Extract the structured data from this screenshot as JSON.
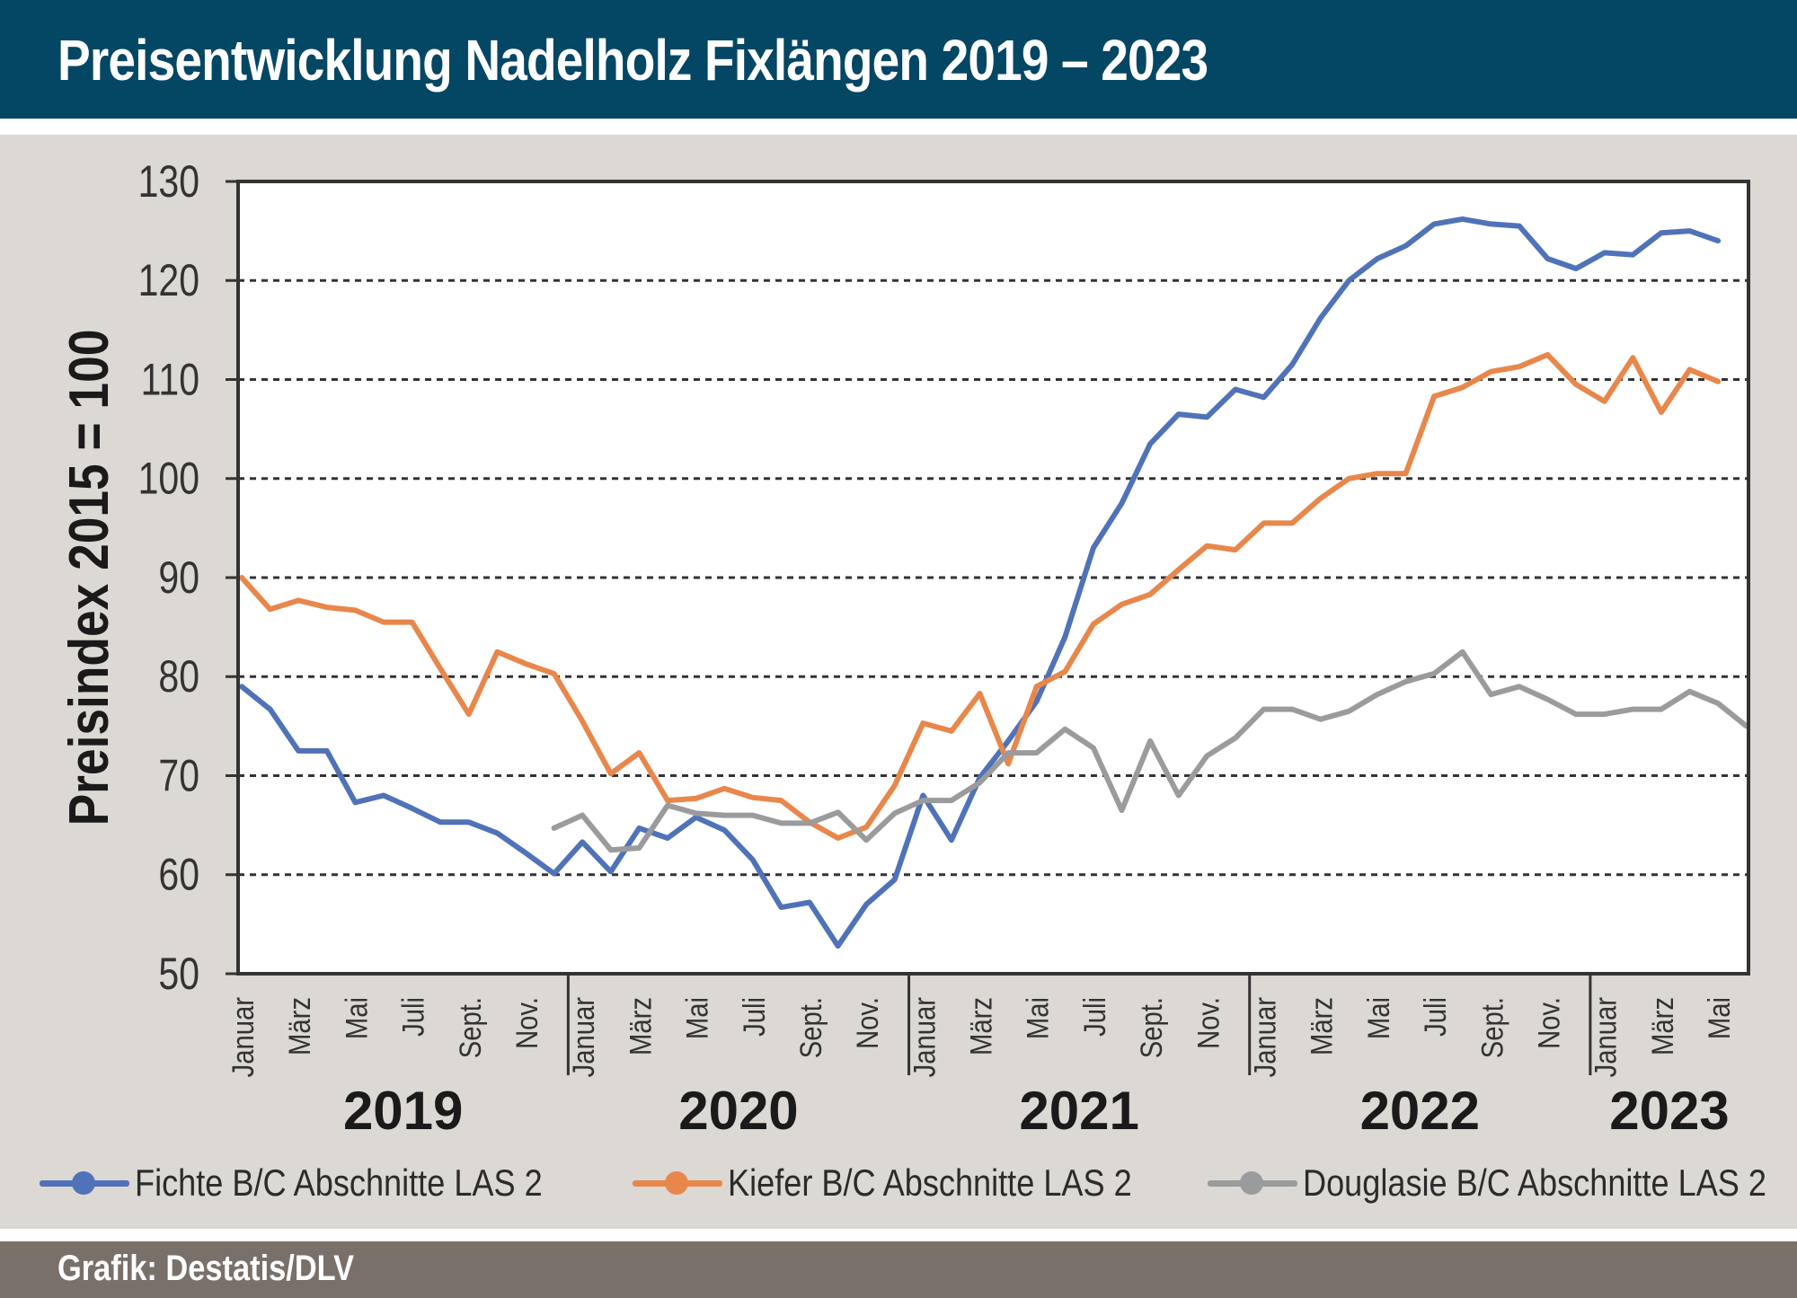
{
  "header": {
    "title": "Preisentwicklung Nadelholz Fixlängen 2019 – 2023"
  },
  "footer": {
    "source": "Grafik: Destatis/DLV"
  },
  "chart_data": {
    "type": "line",
    "ylabel": "Preisindex 2015 = 100",
    "ylim": [
      50,
      130
    ],
    "yticks": [
      50,
      60,
      70,
      80,
      90,
      100,
      110,
      120,
      130
    ],
    "grid": "horizontal dashed",
    "legend_position": "bottom",
    "month_labels": [
      "Januar",
      "März",
      "Mai",
      "Juli",
      "Sept.",
      "Nov."
    ],
    "years": [
      "2019",
      "2020",
      "2021",
      "2022",
      "2023"
    ],
    "months_per_year": [
      12,
      12,
      12,
      12,
      6
    ],
    "series": [
      {
        "name": "Fichte B/C Abschnitte LAS 2",
        "color": "#4f72b8",
        "start_month": 0,
        "values": [
          79,
          76.7,
          72.5,
          72.5,
          67.3,
          68,
          66.7,
          65.3,
          65.3,
          64.2,
          62.2,
          60.1,
          63.3,
          60.3,
          64.7,
          63.7,
          65.8,
          64.5,
          61.5,
          56.7,
          57.2,
          52.8,
          57,
          59.5,
          68,
          63.5,
          69.8,
          73.5,
          77.5,
          84,
          93,
          97.5,
          103.5,
          106.5,
          106.2,
          109,
          108.2,
          111.5,
          116.2,
          120,
          122.2,
          123.5,
          125.7,
          126.2,
          125.7,
          125.5,
          122.2,
          121.2,
          122.8,
          122.6,
          124.8,
          125,
          124
        ]
      },
      {
        "name": "Kiefer B/C Abschnitte LAS 2",
        "color": "#e8874b",
        "start_month": 0,
        "values": [
          90,
          86.8,
          87.7,
          87,
          86.7,
          85.5,
          85.5,
          80.8,
          76.2,
          82.5,
          81.3,
          80.3,
          75.5,
          70.2,
          72.3,
          67.5,
          67.7,
          68.7,
          67.8,
          67.5,
          65.3,
          63.7,
          64.8,
          69,
          75.3,
          74.5,
          78.3,
          71.2,
          79,
          80.5,
          85.3,
          87.3,
          88.3,
          90.8,
          93.2,
          92.8,
          95.5,
          95.5,
          98,
          100,
          100.5,
          100.5,
          108.3,
          109.2,
          110.8,
          111.3,
          112.5,
          109.5,
          107.8,
          112.2,
          106.7,
          111,
          109.8
        ]
      },
      {
        "name": "Douglasie B/C Abschnitte LAS 2",
        "color": "#999b9c",
        "start_month": 11,
        "values": [
          64.7,
          66,
          62.5,
          62.7,
          67,
          66.2,
          66,
          66,
          65.2,
          65.2,
          66.3,
          63.5,
          66.2,
          67.5,
          67.5,
          69.3,
          72.3,
          72.3,
          74.7,
          72.8,
          66.5,
          73.5,
          68,
          72,
          73.8,
          76.7,
          76.7,
          75.7,
          76.5,
          78.2,
          79.5,
          80.3,
          82.5,
          78.2,
          79,
          77.7,
          76.2,
          76.2,
          76.7,
          76.7,
          78.5,
          77.3,
          75
        ]
      }
    ]
  }
}
